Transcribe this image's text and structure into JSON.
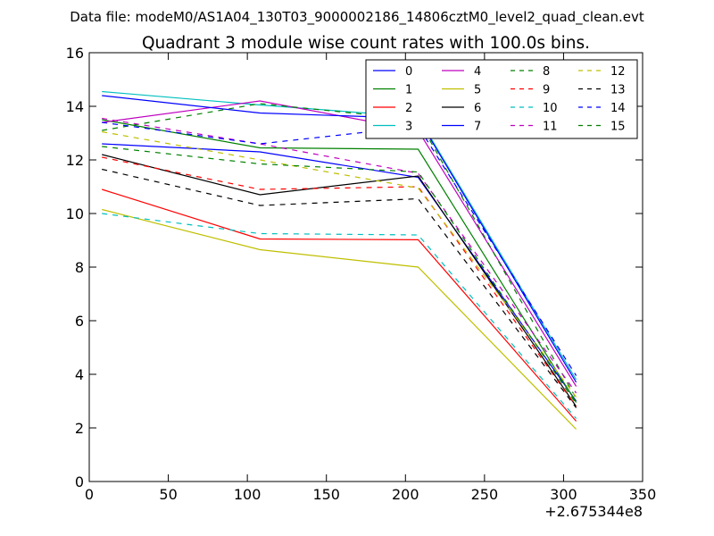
{
  "header": {
    "suptitle": "Data file: modeM0/AS1A04_130T03_9000002186_14806cztM0_level2_quad_clean.evt"
  },
  "chart_data": {
    "type": "line",
    "title": "Quadrant 3 module wise count rates with 100.0s bins.",
    "xlabel": "",
    "ylabel": "",
    "x_offset_label": "+2.675344e8",
    "xlim": [
      0,
      350
    ],
    "ylim": [
      0,
      16
    ],
    "xticks": [
      0,
      50,
      100,
      150,
      200,
      250,
      300,
      350
    ],
    "yticks": [
      0,
      2,
      4,
      6,
      8,
      10,
      12,
      14,
      16
    ],
    "x": [
      8,
      108,
      208,
      308
    ],
    "legend_position": "top-right",
    "legend_columns": 4,
    "series": [
      {
        "name": "0",
        "color": "#0000ff",
        "style": "solid",
        "values": [
          12.6,
          12.3,
          11.35,
          3.0
        ]
      },
      {
        "name": "1",
        "color": "#008000",
        "style": "solid",
        "values": [
          13.5,
          12.45,
          12.4,
          2.95
        ]
      },
      {
        "name": "2",
        "color": "#ff0000",
        "style": "solid",
        "values": [
          10.9,
          9.05,
          9.02,
          2.25
        ]
      },
      {
        "name": "3",
        "color": "#00bfbf",
        "style": "solid",
        "values": [
          14.55,
          14.05,
          13.6,
          3.8
        ]
      },
      {
        "name": "4",
        "color": "#bf00bf",
        "style": "solid",
        "values": [
          13.4,
          14.2,
          13.1,
          3.55
        ]
      },
      {
        "name": "5",
        "color": "#bfbf00",
        "style": "solid",
        "values": [
          10.15,
          8.65,
          8.0,
          1.95
        ]
      },
      {
        "name": "6",
        "color": "#000000",
        "style": "solid",
        "values": [
          12.2,
          10.7,
          11.4,
          2.8
        ]
      },
      {
        "name": "7",
        "color": "#0000ff",
        "style": "solid",
        "values": [
          14.4,
          13.75,
          13.55,
          3.7
        ]
      },
      {
        "name": "8",
        "color": "#008000",
        "style": "dashed",
        "values": [
          13.1,
          14.1,
          13.5,
          3.1
        ]
      },
      {
        "name": "9",
        "color": "#ff0000",
        "style": "dashed",
        "values": [
          12.1,
          10.9,
          11.0,
          2.8
        ]
      },
      {
        "name": "10",
        "color": "#00bfbf",
        "style": "dashed",
        "values": [
          10.0,
          9.25,
          9.2,
          2.35
        ]
      },
      {
        "name": "11",
        "color": "#bf00bf",
        "style": "dashed",
        "values": [
          13.55,
          12.6,
          11.5,
          3.3
        ]
      },
      {
        "name": "12",
        "color": "#bfbf00",
        "style": "dashed",
        "values": [
          13.05,
          12.0,
          10.95,
          3.15
        ]
      },
      {
        "name": "13",
        "color": "#000000",
        "style": "dashed",
        "values": [
          11.65,
          10.3,
          10.55,
          2.75
        ]
      },
      {
        "name": "14",
        "color": "#0000ff",
        "style": "dashed",
        "values": [
          13.4,
          12.6,
          13.25,
          3.95
        ]
      },
      {
        "name": "15",
        "color": "#008000",
        "style": "dashed",
        "values": [
          12.5,
          11.85,
          11.55,
          2.9
        ]
      }
    ]
  }
}
